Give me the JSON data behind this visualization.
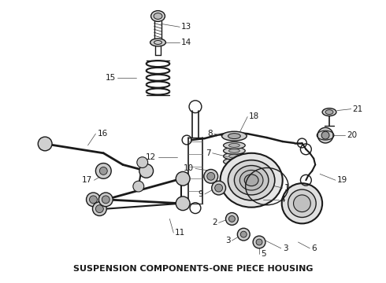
{
  "title": "SUSPENSION COMPONENTS-ONE PIECE HOUSING",
  "title_fontsize": 8,
  "title_fontweight": "bold",
  "bg_color": "#ffffff",
  "line_color": "#1a1a1a",
  "label_color": "#1a1a1a",
  "label_fontsize": 7.5,
  "fig_width": 4.9,
  "fig_height": 3.6,
  "dpi": 100
}
